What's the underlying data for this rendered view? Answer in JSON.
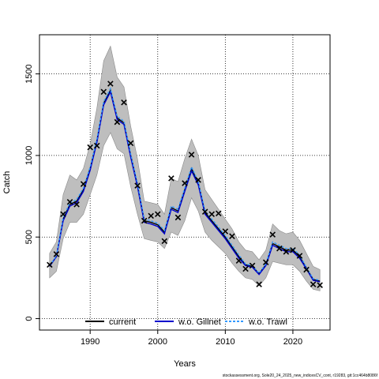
{
  "chart_data": {
    "type": "line",
    "title": "",
    "xlabel": "Years",
    "ylabel": "Catch",
    "xlim": [
      1982.5,
      2025.5
    ],
    "ylim": [
      -70,
      1740
    ],
    "x_ticks": [
      1990,
      2000,
      2010,
      2020
    ],
    "y_ticks": [
      0,
      500,
      1000,
      1500
    ],
    "grid": true,
    "legend": {
      "placement": "bottom-center",
      "entries": [
        "current",
        "w.o. Gillnet",
        "w.o. Trawl"
      ]
    },
    "colors": {
      "current": "#000000",
      "gillnet": "#0000cc",
      "trawl": "#3399ff",
      "band": "#bebebe",
      "observed": "#000000"
    },
    "years": [
      1984,
      1985,
      1986,
      1987,
      1988,
      1989,
      1990,
      1991,
      1992,
      1993,
      1994,
      1995,
      1996,
      1997,
      1998,
      1999,
      2000,
      2001,
      2002,
      2003,
      2004,
      2005,
      2006,
      2007,
      2008,
      2009,
      2010,
      2011,
      2012,
      2013,
      2014,
      2015,
      2016,
      2017,
      2018,
      2019,
      2020,
      2021,
      2022,
      2023,
      2024
    ],
    "series": [
      {
        "name": "current",
        "values": [
          320,
          380,
          610,
          700,
          720,
          790,
          920,
          1090,
          1320,
          1400,
          1230,
          1200,
          1000,
          820,
          600,
          590,
          575,
          530,
          680,
          660,
          790,
          920,
          830,
          650,
          600,
          550,
          500,
          440,
          380,
          330,
          320,
          275,
          330,
          460,
          440,
          420,
          420,
          380,
          310,
          240,
          230
        ]
      },
      {
        "name": "w.o. Gillnet",
        "values": [
          320,
          380,
          600,
          690,
          710,
          780,
          910,
          1080,
          1310,
          1390,
          1220,
          1190,
          990,
          810,
          590,
          580,
          565,
          520,
          670,
          650,
          780,
          905,
          820,
          640,
          590,
          540,
          490,
          430,
          370,
          325,
          315,
          270,
          325,
          450,
          430,
          410,
          410,
          370,
          305,
          235,
          225
        ]
      },
      {
        "name": "w.o. Trawl",
        "values": [
          325,
          385,
          620,
          710,
          730,
          800,
          930,
          1100,
          1330,
          1410,
          1240,
          1210,
          1010,
          830,
          610,
          600,
          585,
          540,
          690,
          670,
          800,
          930,
          840,
          660,
          610,
          560,
          510,
          450,
          390,
          335,
          325,
          280,
          335,
          470,
          450,
          430,
          430,
          390,
          315,
          245,
          235
        ]
      }
    ],
    "band_upper": [
      400,
      470,
      760,
      880,
      850,
      920,
      1070,
      1290,
      1580,
      1670,
      1480,
      1420,
      1180,
      980,
      720,
      710,
      700,
      640,
      860,
      840,
      980,
      1100,
      1000,
      790,
      730,
      670,
      610,
      550,
      470,
      420,
      410,
      360,
      420,
      580,
      540,
      520,
      530,
      480,
      400,
      320,
      300
    ],
    "band_lower": [
      250,
      290,
      490,
      590,
      590,
      640,
      760,
      880,
      1060,
      1140,
      1040,
      1010,
      810,
      640,
      490,
      480,
      470,
      430,
      530,
      510,
      600,
      740,
      660,
      530,
      480,
      440,
      400,
      340,
      290,
      250,
      240,
      200,
      250,
      350,
      340,
      330,
      330,
      290,
      230,
      180,
      170
    ],
    "observed": [
      330,
      395,
      640,
      715,
      700,
      825,
      1050,
      1060,
      1390,
      1440,
      1205,
      1325,
      1075,
      815,
      600,
      630,
      640,
      475,
      860,
      620,
      830,
      1005,
      850,
      655,
      640,
      645,
      535,
      505,
      355,
      305,
      325,
      210,
      345,
      515,
      430,
      410,
      420,
      385,
      300,
      210,
      205
    ]
  },
  "footer_text": "stockassessment.org, Sole20_24_2025_new_indicesCV_cont, r19283, git:1cc464b8086f"
}
